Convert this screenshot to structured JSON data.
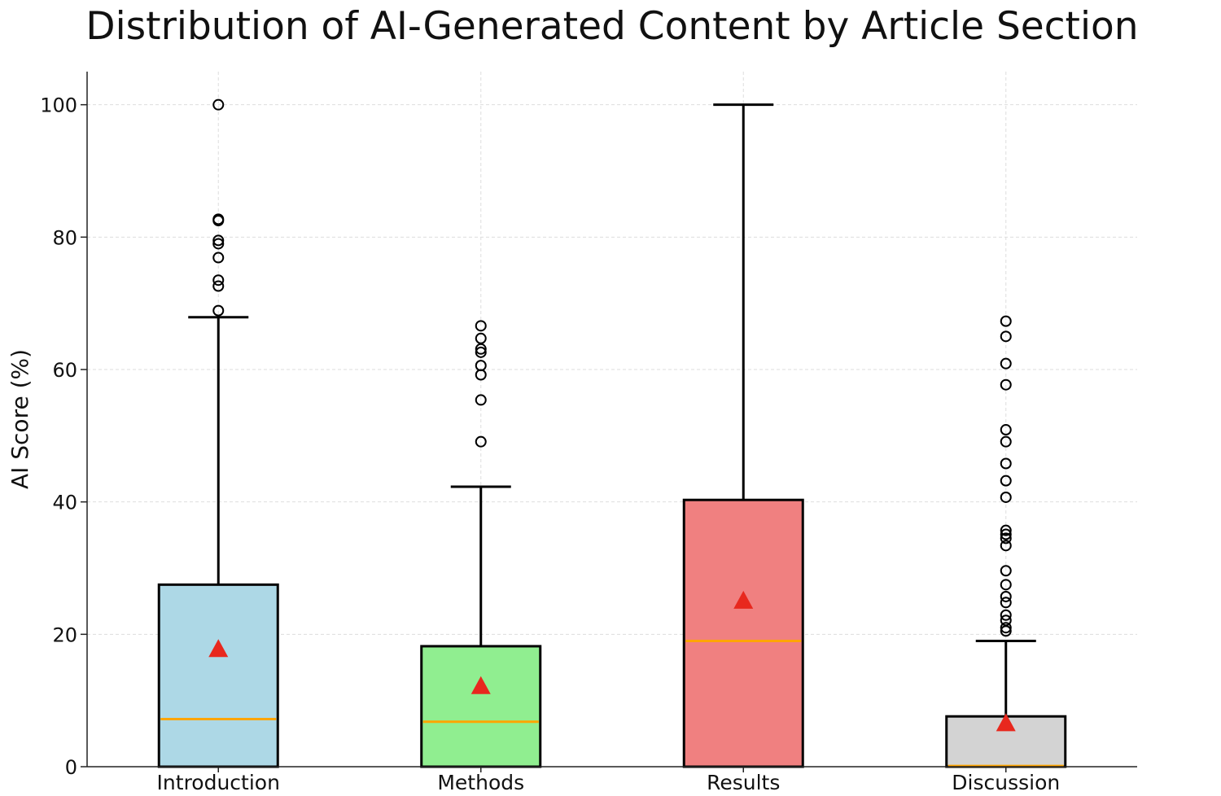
{
  "chart_data": {
    "type": "box",
    "title": "Distribution of AI-Generated Content by Article Section",
    "xlabel": "",
    "ylabel": "AI Score (%)",
    "ylim": [
      0,
      105
    ],
    "yticks": [
      0,
      20,
      40,
      60,
      80,
      100
    ],
    "grid": true,
    "categories": [
      "Introduction",
      "Methods",
      "Results",
      "Discussion"
    ],
    "colors": [
      "#add8e6",
      "#90ee90",
      "#f08080",
      "#d3d3d3"
    ],
    "median_color": "#ffa500",
    "mean_color": "#e8281e",
    "boxes": [
      {
        "category": "Introduction",
        "q1": 0,
        "median": 7.2,
        "q3": 27.5,
        "whisker_low": 0,
        "whisker_high": 67.9,
        "mean": 17.8,
        "outliers": [
          100,
          82.7,
          82.5,
          79.5,
          79.0,
          76.9,
          73.5,
          72.6,
          68.9
        ]
      },
      {
        "category": "Methods",
        "q1": 0,
        "median": 6.8,
        "q3": 18.2,
        "whisker_low": 0,
        "whisker_high": 42.3,
        "mean": 12.2,
        "outliers": [
          66.6,
          64.7,
          63.1,
          62.6,
          60.6,
          59.2,
          55.4,
          49.1
        ]
      },
      {
        "category": "Results",
        "q1": 0,
        "median": 19.0,
        "q3": 40.3,
        "whisker_low": 0,
        "whisker_high": 100,
        "mean": 25.1,
        "outliers": []
      },
      {
        "category": "Discussion",
        "q1": 0,
        "median": 0.1,
        "q3": 7.6,
        "whisker_low": 0,
        "whisker_high": 19.0,
        "mean": 6.6,
        "outliers": [
          67.3,
          65.0,
          60.9,
          57.7,
          50.9,
          49.1,
          45.8,
          43.2,
          40.7,
          35.7,
          35.1,
          34.5,
          33.4,
          29.6,
          27.5,
          25.7,
          24.8,
          22.9,
          22.1,
          21.0,
          20.5
        ]
      }
    ]
  }
}
